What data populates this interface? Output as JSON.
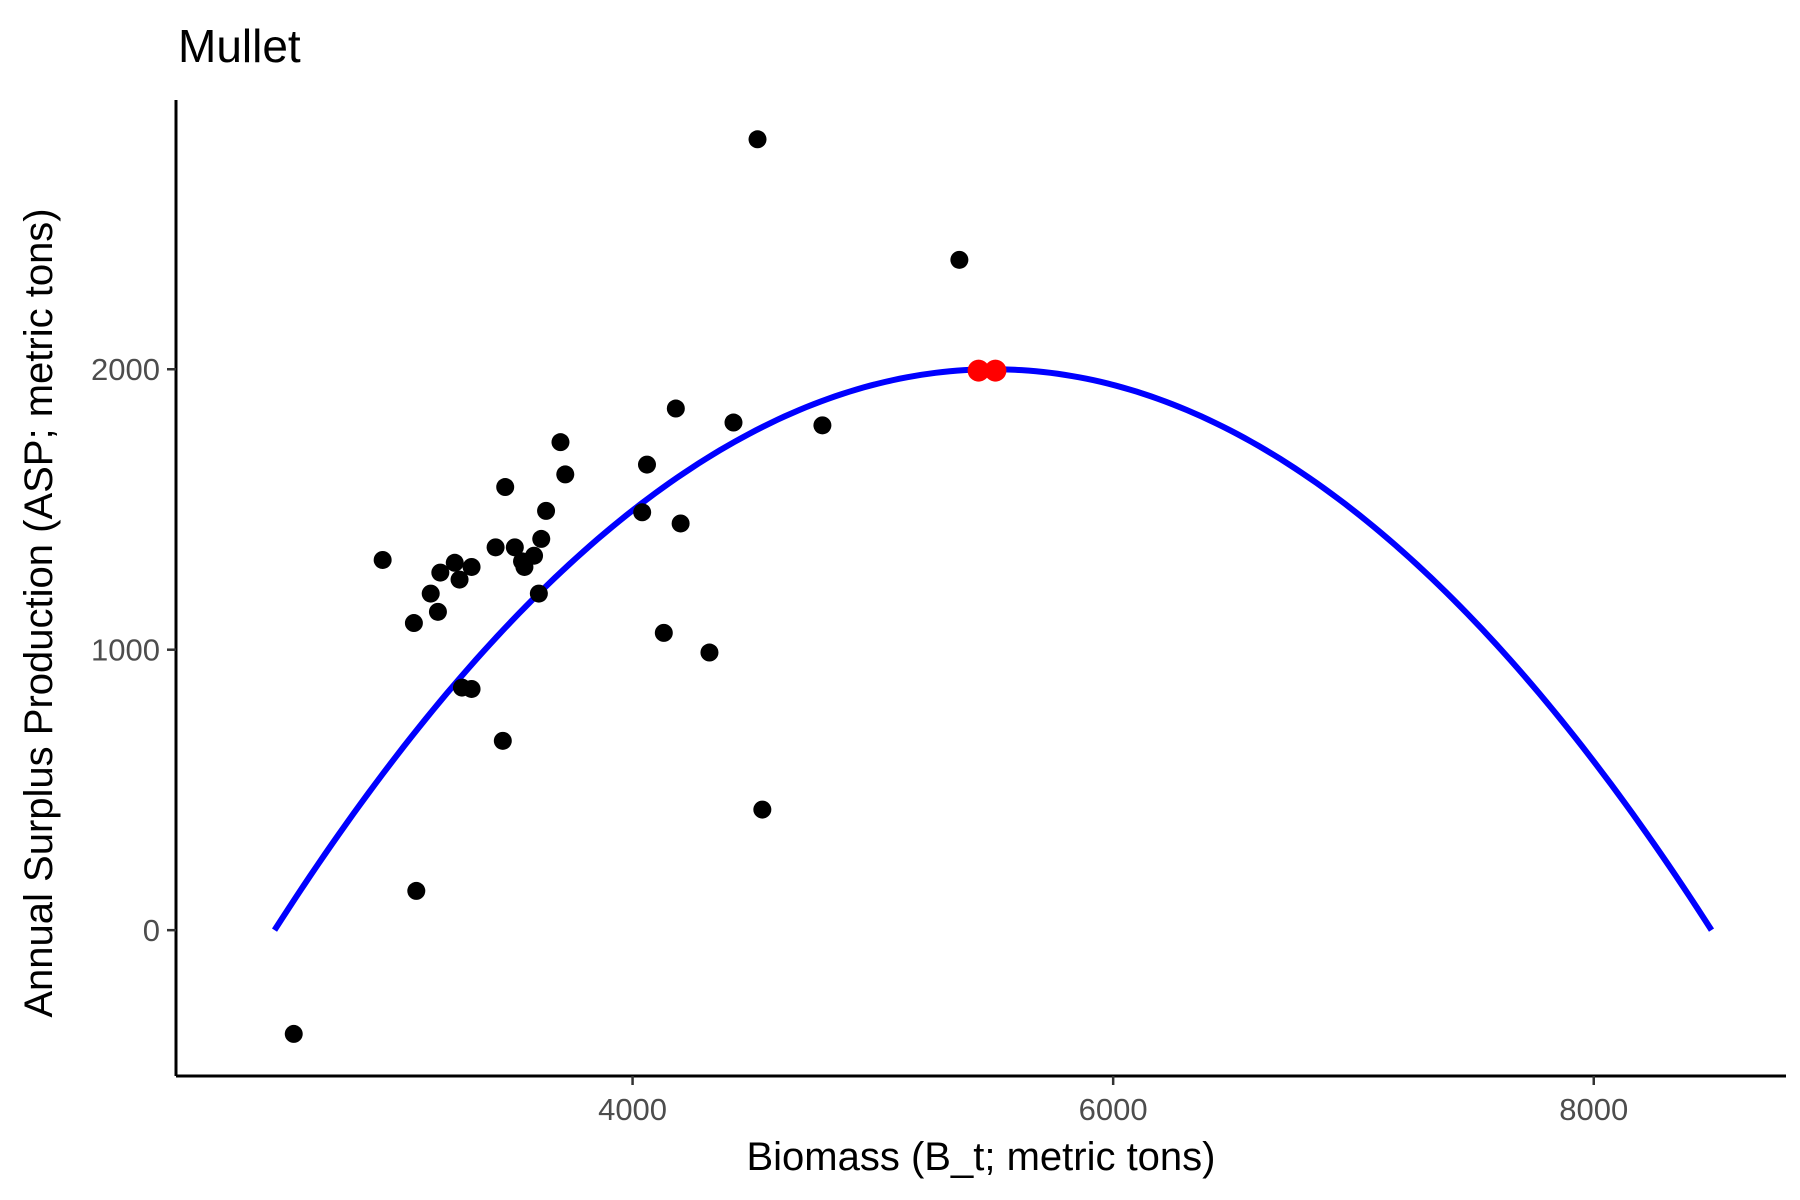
{
  "chart_data": {
    "type": "scatter",
    "title": "Mullet",
    "xlabel": "Biomass (B_t; metric tons)",
    "ylabel": "Annual Surplus Production (ASP; metric tons)",
    "xlim": [
      2100,
      8800
    ],
    "ylim": [
      -520,
      2960
    ],
    "x_ticks": [
      4000,
      6000,
      8000
    ],
    "y_ticks": [
      0,
      1000,
      2000
    ],
    "grid": false,
    "legend": "none",
    "points": [
      {
        "x": 2590,
        "y": -370
      },
      {
        "x": 2960,
        "y": 1320
      },
      {
        "x": 3090,
        "y": 1095
      },
      {
        "x": 3100,
        "y": 140
      },
      {
        "x": 3160,
        "y": 1200
      },
      {
        "x": 3190,
        "y": 1135
      },
      {
        "x": 3200,
        "y": 1275
      },
      {
        "x": 3260,
        "y": 1310
      },
      {
        "x": 3280,
        "y": 1250
      },
      {
        "x": 3290,
        "y": 865
      },
      {
        "x": 3330,
        "y": 860
      },
      {
        "x": 3330,
        "y": 1295
      },
      {
        "x": 3430,
        "y": 1365
      },
      {
        "x": 3460,
        "y": 675
      },
      {
        "x": 3470,
        "y": 1580
      },
      {
        "x": 3510,
        "y": 1365
      },
      {
        "x": 3540,
        "y": 1315
      },
      {
        "x": 3550,
        "y": 1295
      },
      {
        "x": 3590,
        "y": 1335
      },
      {
        "x": 3610,
        "y": 1200
      },
      {
        "x": 3620,
        "y": 1395
      },
      {
        "x": 3640,
        "y": 1495
      },
      {
        "x": 3700,
        "y": 1740
      },
      {
        "x": 3720,
        "y": 1625
      },
      {
        "x": 4040,
        "y": 1490
      },
      {
        "x": 4060,
        "y": 1660
      },
      {
        "x": 4130,
        "y": 1060
      },
      {
        "x": 4180,
        "y": 1860
      },
      {
        "x": 4200,
        "y": 1450
      },
      {
        "x": 4320,
        "y": 990
      },
      {
        "x": 4420,
        "y": 1810
      },
      {
        "x": 4520,
        "y": 2820
      },
      {
        "x": 4540,
        "y": 430
      },
      {
        "x": 4790,
        "y": 1800
      },
      {
        "x": 5360,
        "y": 2390
      }
    ],
    "highlight_points": [
      {
        "x": 5440,
        "y": 1995,
        "color": "#ff0000"
      },
      {
        "x": 5510,
        "y": 1995,
        "color": "#ff0000"
      }
    ],
    "curve": {
      "type": "parabola",
      "color": "#0000ff",
      "x_zero_left": 2510,
      "x_zero_right": 8490,
      "peak": {
        "x": 5500,
        "y": 2000
      }
    },
    "point_color": "#000000"
  }
}
